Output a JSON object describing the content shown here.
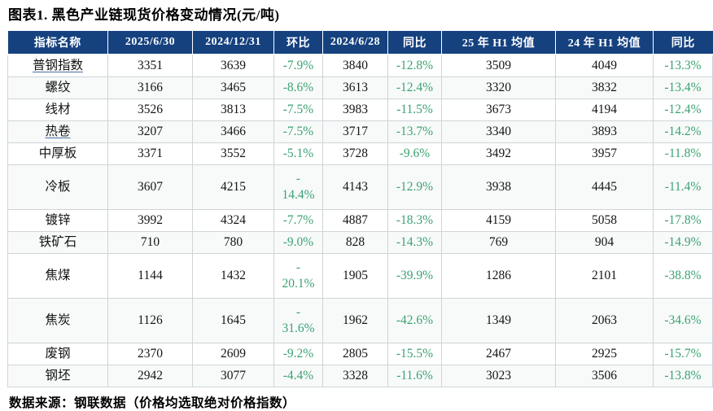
{
  "title": "图表1.  黑色产业链现货价格变动情况(元/吨)",
  "source_note": "数据来源：钢联数据（价格均选取绝对价格指数）",
  "colors": {
    "header_bg": "#15417f",
    "header_text": "#ffffff",
    "percent_text": "#3ba272",
    "body_text": "#141414",
    "grid_border": "#cfd4d6"
  },
  "chart_data": {
    "type": "table",
    "figure_label": "图表1.",
    "title": "黑色产业链现货价格变动情况(元/吨)",
    "columns": [
      "指标名称",
      "2025/6/30",
      "2024/12/31",
      "环比",
      "2024/6/28",
      "同比",
      "25 年 H1 均值",
      "24 年 H1 均值",
      "同比"
    ],
    "percent_value_indexes": [
      2,
      4,
      7
    ],
    "rows": [
      {
        "name": "普钢指数",
        "underlined": true,
        "tall": false,
        "values": [
          "3351",
          "3639",
          "-7.9%",
          "3840",
          "-12.8%",
          "3509",
          "4049",
          "-13.3%"
        ]
      },
      {
        "name": "螺纹",
        "underlined": false,
        "tall": false,
        "values": [
          "3166",
          "3465",
          "-8.6%",
          "3613",
          "-12.4%",
          "3320",
          "3832",
          "-13.4%"
        ]
      },
      {
        "name": "线材",
        "underlined": false,
        "tall": false,
        "values": [
          "3526",
          "3813",
          "-7.5%",
          "3983",
          "-11.5%",
          "3673",
          "4194",
          "-12.4%"
        ]
      },
      {
        "name": "热卷",
        "underlined": true,
        "tall": false,
        "values": [
          "3207",
          "3466",
          "-7.5%",
          "3717",
          "-13.7%",
          "3340",
          "3893",
          "-14.2%"
        ]
      },
      {
        "name": "中厚板",
        "underlined": false,
        "tall": false,
        "values": [
          "3371",
          "3552",
          "-5.1%",
          "3728",
          "-9.6%",
          "3492",
          "3957",
          "-11.8%"
        ]
      },
      {
        "name": "冷板",
        "underlined": false,
        "tall": true,
        "values": [
          "3607",
          "4215",
          "-\n14.4%",
          "4143",
          "-12.9%",
          "3938",
          "4445",
          "-11.4%"
        ]
      },
      {
        "name": "镀锌",
        "underlined": false,
        "tall": false,
        "values": [
          "3992",
          "4324",
          "-7.7%",
          "4887",
          "-18.3%",
          "4159",
          "5058",
          "-17.8%"
        ]
      },
      {
        "name": "铁矿石",
        "underlined": false,
        "tall": false,
        "values": [
          "710",
          "780",
          "-9.0%",
          "828",
          "-14.3%",
          "769",
          "904",
          "-14.9%"
        ]
      },
      {
        "name": "焦煤",
        "underlined": false,
        "tall": true,
        "values": [
          "1144",
          "1432",
          "-\n20.1%",
          "1905",
          "-39.9%",
          "1286",
          "2101",
          "-38.8%"
        ]
      },
      {
        "name": "焦炭",
        "underlined": false,
        "tall": true,
        "values": [
          "1126",
          "1645",
          "-\n31.6%",
          "1962",
          "-42.6%",
          "1349",
          "2063",
          "-34.6%"
        ]
      },
      {
        "name": "废钢",
        "underlined": false,
        "tall": false,
        "values": [
          "2370",
          "2609",
          "-9.2%",
          "2805",
          "-15.5%",
          "2467",
          "2925",
          "-15.7%"
        ]
      },
      {
        "name": "钢坯",
        "underlined": false,
        "tall": false,
        "values": [
          "2942",
          "3077",
          "-4.4%",
          "3328",
          "-11.6%",
          "3023",
          "3506",
          "-13.8%"
        ]
      }
    ]
  }
}
